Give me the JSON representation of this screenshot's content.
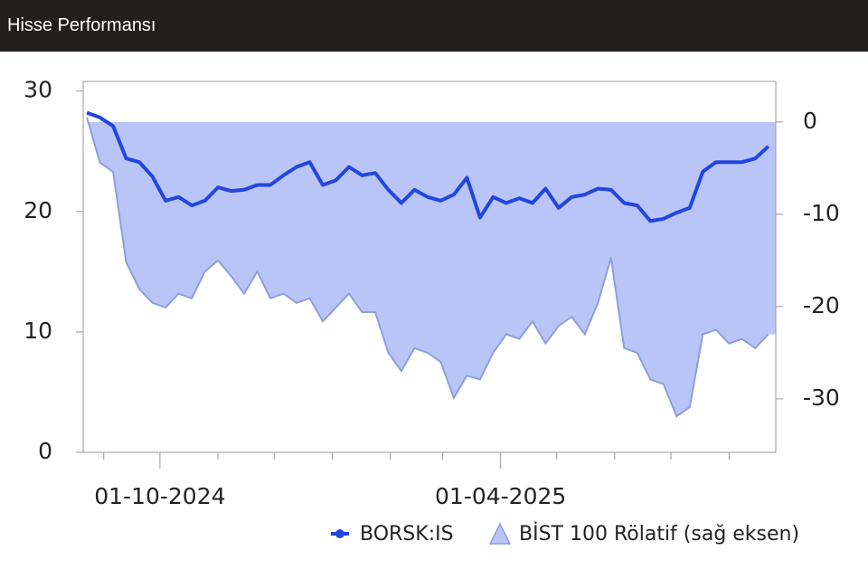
{
  "chart_data": {
    "type": "line",
    "title": "Hisse Performansı",
    "x": [
      "2024-08-23",
      "2024-08-30",
      "2024-09-06",
      "2024-09-13",
      "2024-09-20",
      "2024-09-27",
      "2024-10-04",
      "2024-10-11",
      "2024-10-18",
      "2024-10-25",
      "2024-11-01",
      "2024-11-08",
      "2024-11-15",
      "2024-11-22",
      "2024-11-29",
      "2024-12-06",
      "2024-12-13",
      "2024-12-20",
      "2024-12-27",
      "2025-01-03",
      "2025-01-10",
      "2025-01-17",
      "2025-01-24",
      "2025-01-31",
      "2025-02-07",
      "2025-02-14",
      "2025-02-21",
      "2025-02-28",
      "2025-03-07",
      "2025-03-14",
      "2025-03-21",
      "2025-03-28",
      "2025-04-04",
      "2025-04-11",
      "2025-04-18",
      "2025-04-25",
      "2025-05-02",
      "2025-05-09",
      "2025-05-16",
      "2025-05-23",
      "2025-05-30",
      "2025-06-06",
      "2025-06-13",
      "2025-06-20",
      "2025-06-27",
      "2025-07-04",
      "2025-07-11",
      "2025-07-18",
      "2025-07-25",
      "2025-08-01",
      "2025-08-08",
      "2025-08-15",
      "2025-08-22"
    ],
    "series": [
      {
        "name": "BORSK:IS",
        "kind": "line",
        "color": "#2346e0",
        "values": [
          28.2,
          27.8,
          27.1,
          24.4,
          24.1,
          22.9,
          20.9,
          21.2,
          20.5,
          20.9,
          22.0,
          21.7,
          21.8,
          22.2,
          22.2,
          23.0,
          23.7,
          24.1,
          22.2,
          22.6,
          23.7,
          23.0,
          23.2,
          21.8,
          20.7,
          21.8,
          21.2,
          20.9,
          21.4,
          22.8,
          19.5,
          21.2,
          20.7,
          21.1,
          20.7,
          21.9,
          20.3,
          21.2,
          21.4,
          21.9,
          21.8,
          20.7,
          20.5,
          19.2,
          19.4,
          19.9,
          20.3,
          23.3,
          24.1,
          24.1,
          24.1,
          24.4,
          25.4
        ]
      },
      {
        "name": "BİST 100 Rölatif (sağ eksen)",
        "kind": "area",
        "axis": "y2",
        "color": "#b9c5f6",
        "edge_color": "#8d9ee0",
        "values": [
          0.5,
          -4.4,
          -5.4,
          -15.2,
          -18.1,
          -19.6,
          -20.1,
          -18.6,
          -19.1,
          -16.2,
          -15.0,
          -16.7,
          -18.6,
          -16.2,
          -19.1,
          -18.6,
          -19.6,
          -19.1,
          -21.6,
          -20.1,
          -18.6,
          -20.6,
          -20.6,
          -25.0,
          -27.0,
          -24.5,
          -25.0,
          -26.0,
          -29.9,
          -27.5,
          -27.9,
          -25.0,
          -23.0,
          -23.5,
          -21.6,
          -24.0,
          -22.1,
          -21.1,
          -23.0,
          -19.6,
          -14.7,
          -24.5,
          -25.0,
          -27.9,
          -28.4,
          -31.9,
          -30.9,
          -23.0,
          -22.5,
          -24.0,
          -23.5,
          -24.5,
          -23.0
        ]
      }
    ],
    "xlim": [
      "2024-08-21",
      "2025-08-26"
    ],
    "xticks": [
      {
        "value": "2024-10-01",
        "label": "01-10-2024"
      },
      {
        "value": "2025-04-01",
        "label": "01-04-2025"
      }
    ],
    "xminorticks": [
      "2024-09-01",
      "2024-11-01",
      "2024-12-01",
      "2025-01-01",
      "2025-02-01",
      "2025-03-01",
      "2025-05-01",
      "2025-06-01",
      "2025-07-01",
      "2025-08-01"
    ],
    "ylim": [
      0,
      30.8
    ],
    "yticks": [
      0,
      10,
      20,
      30
    ],
    "y2lim": [
      -35.8,
      4.4
    ],
    "y2ticks": [
      0,
      -10,
      -20,
      -30
    ]
  }
}
